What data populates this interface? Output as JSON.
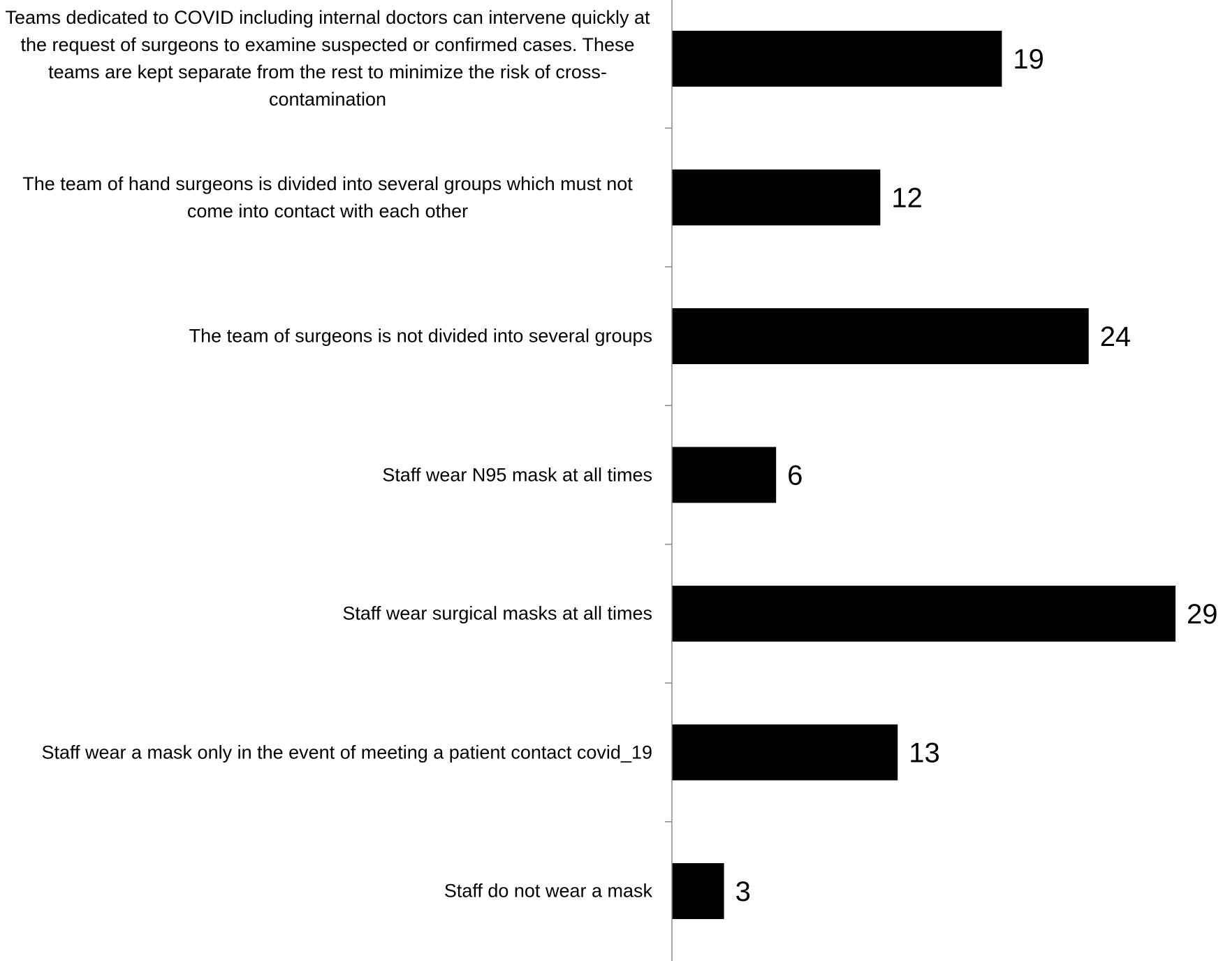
{
  "chart_data": {
    "type": "bar",
    "orientation": "horizontal",
    "categories": [
      "Teams dedicated to COVID including internal doctors can intervene quickly at the request of surgeons to examine suspected or confirmed cases. These teams are kept separate from the rest to minimize the risk of cross-contamination",
      "The team of hand surgeons is divided into several groups which must not come into contact with each other",
      "The team of surgeons is not divided into several groups",
      "Staff wear N95 mask at all times",
      "Staff wear surgical masks at all times",
      "Staff wear a mask only in the event of meeting a patient contact covid_19",
      "Staff do not wear a mask"
    ],
    "values": [
      19,
      12,
      24,
      6,
      29,
      13,
      3
    ],
    "data_labels": [
      "19",
      "12",
      "24",
      "6",
      "29",
      "13",
      "3"
    ],
    "title": "",
    "xlabel": "",
    "ylabel": "",
    "xlim": [
      0,
      29
    ],
    "grid": false,
    "legend": "none",
    "bar_color": "#000000",
    "axis_color": "#8c8c8c"
  }
}
